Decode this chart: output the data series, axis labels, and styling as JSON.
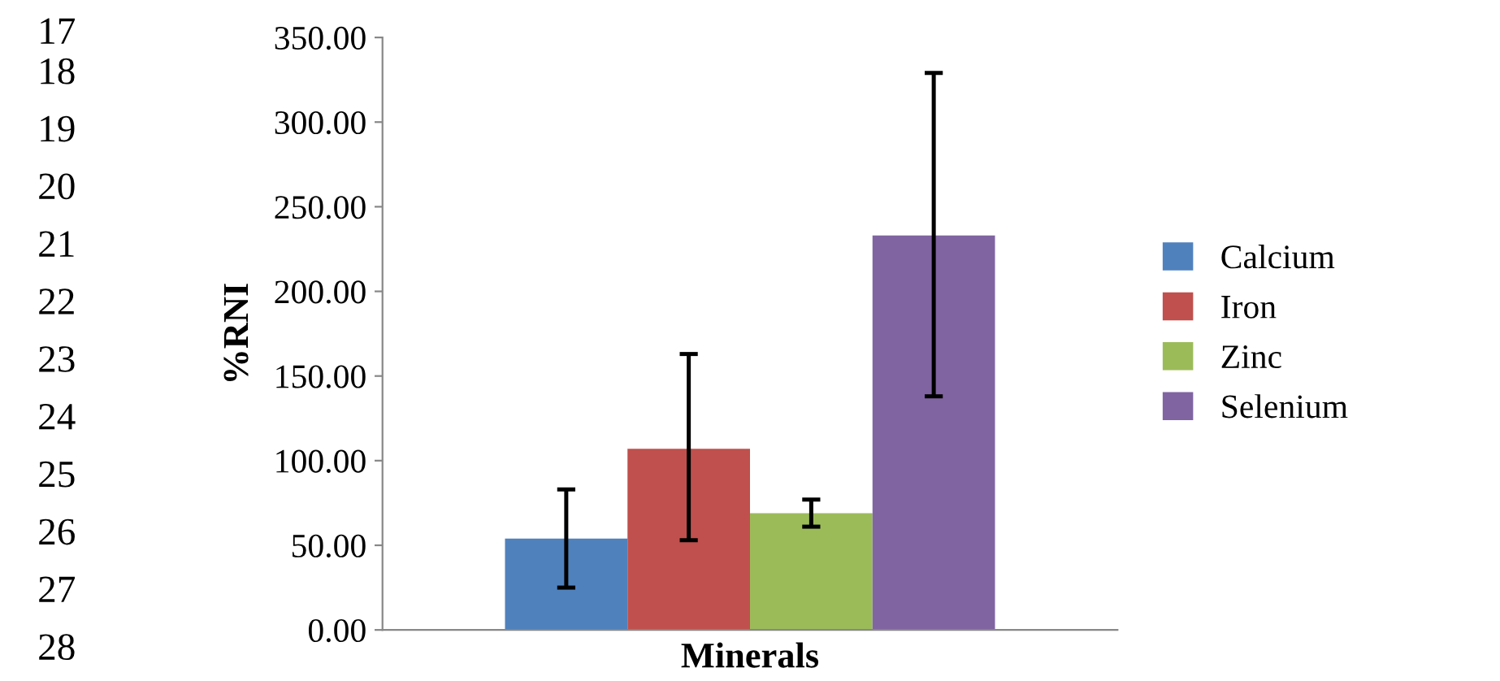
{
  "chart_data": {
    "type": "bar",
    "xlabel": "Minerals",
    "ylabel": "%RNI",
    "categories": [
      null
    ],
    "series": [
      {
        "name": "Calcium",
        "color": "#4f81bd",
        "values": [
          54
        ],
        "errors": [
          [
            25,
            83
          ]
        ]
      },
      {
        "name": "Iron",
        "color": "#c0504d",
        "values": [
          107
        ],
        "errors": [
          [
            53,
            163
          ]
        ]
      },
      {
        "name": "Zinc",
        "color": "#9bbb59",
        "values": [
          69
        ],
        "errors": [
          [
            61,
            77
          ]
        ]
      },
      {
        "name": "Selenium",
        "color": "#8064a2",
        "values": [
          233
        ],
        "errors": [
          [
            138,
            329
          ]
        ]
      }
    ],
    "ylim": [
      0,
      350
    ],
    "yticks": [
      {
        "value": 0,
        "label": "0.00"
      },
      {
        "value": 50,
        "label": "50.00"
      },
      {
        "value": 100,
        "label": "100.00"
      },
      {
        "value": 150,
        "label": "150.00"
      },
      {
        "value": 200,
        "label": "200.00"
      },
      {
        "value": 250,
        "label": "250.00"
      },
      {
        "value": 300,
        "label": "300.00"
      },
      {
        "value": 350,
        "label": "350.00"
      }
    ],
    "grid": false,
    "legend": "right",
    "annotations": [
      "17",
      "18",
      "19",
      "20",
      "21",
      "22",
      "23",
      "24",
      "25",
      "26",
      "27",
      "28"
    ]
  }
}
